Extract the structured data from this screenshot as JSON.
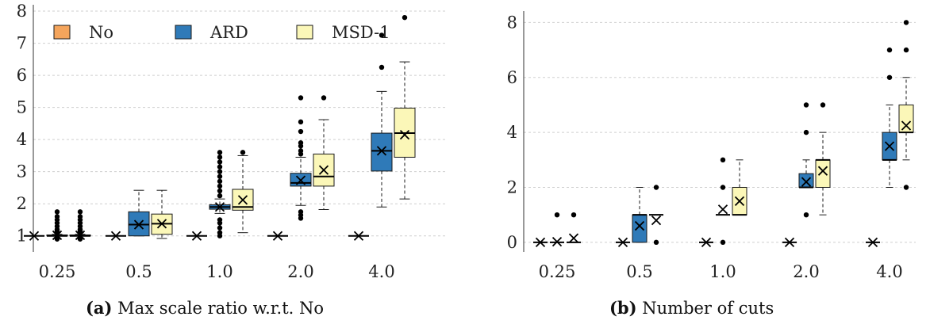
{
  "colors": {
    "No": "#f5a55c",
    "ARD": "#2f7ab8",
    "MSD-1": "#fbf7b8",
    "grid": "#cfcfcf",
    "outline": "#1a1a1a"
  },
  "captions": {
    "a_tag": "(a)",
    "a_text": "Max scale ratio w.r.t. No",
    "b_tag": "(b)",
    "b_text": "Number of cuts"
  },
  "chart_data": [
    {
      "type": "box",
      "categories": [
        "0.25",
        "0.5",
        "1.0",
        "2.0",
        "4.0"
      ],
      "ylim": [
        0.5,
        8.1
      ],
      "yticks": [
        1,
        2,
        3,
        4,
        5,
        6,
        7,
        8
      ],
      "grid": true,
      "legend": {
        "placement": "top-left",
        "entries": [
          {
            "name": "No",
            "color_key": "No"
          },
          {
            "name": "ARD",
            "color_key": "ARD"
          },
          {
            "name": "MSD-1",
            "color_key": "MSD-1"
          }
        ]
      },
      "series": [
        {
          "name": "No",
          "color_key": "No",
          "boxes": [
            {
              "q1": 1,
              "median": 1,
              "q3": 1,
              "whislo": 1,
              "whishi": 1,
              "mean": 1,
              "fliers": []
            },
            {
              "q1": 1,
              "median": 1,
              "q3": 1,
              "whislo": 1,
              "whishi": 1,
              "mean": 1,
              "fliers": []
            },
            {
              "q1": 1,
              "median": 1,
              "q3": 1,
              "whislo": 1,
              "whishi": 1,
              "mean": 1,
              "fliers": []
            },
            {
              "q1": 1,
              "median": 1,
              "q3": 1,
              "whislo": 1,
              "whishi": 1,
              "mean": 1,
              "fliers": []
            },
            {
              "q1": 1,
              "median": 1,
              "q3": 1,
              "whislo": 1,
              "whishi": 1,
              "mean": 1,
              "fliers": []
            }
          ]
        },
        {
          "name": "ARD",
          "color_key": "ARD",
          "boxes": [
            {
              "q1": 1.0,
              "median": 1.0,
              "q3": 1.03,
              "whislo": 1.0,
              "whishi": 1.05,
              "mean": 1.02,
              "fliers": [
                1.1,
                1.15,
                1.2,
                1.3,
                1.4,
                1.5,
                1.6,
                1.75,
                0.9,
                0.95
              ]
            },
            {
              "q1": 1.0,
              "median": 1.35,
              "q3": 1.75,
              "whislo": 1.0,
              "whishi": 2.42,
              "mean": 1.35,
              "fliers": []
            },
            {
              "q1": 1.83,
              "median": 1.9,
              "q3": 1.97,
              "whislo": 1.7,
              "whishi": 2.15,
              "mean": 1.9,
              "fliers": [
                1.0,
                1.1,
                1.25,
                1.4,
                1.5,
                2.25,
                2.4,
                2.55,
                2.7,
                2.85,
                3.0,
                3.15,
                3.3,
                3.45,
                3.6
              ]
            },
            {
              "q1": 2.55,
              "median": 2.65,
              "q3": 2.95,
              "whislo": 1.95,
              "whishi": 3.45,
              "mean": 2.73,
              "fliers": [
                1.55,
                1.65,
                1.75,
                3.55,
                3.65,
                3.8,
                3.9,
                4.25,
                4.55,
                5.3
              ]
            },
            {
              "q1": 3.02,
              "median": 3.65,
              "q3": 4.2,
              "whislo": 1.9,
              "whishi": 5.5,
              "mean": 3.65,
              "fliers": [
                6.25,
                7.25
              ]
            }
          ]
        },
        {
          "name": "MSD-1",
          "color_key": "MSD-1",
          "boxes": [
            {
              "q1": 1.0,
              "median": 1.0,
              "q3": 1.03,
              "whislo": 1.0,
              "whishi": 1.05,
              "mean": 1.02,
              "fliers": [
                1.1,
                1.15,
                1.2,
                1.3,
                1.4,
                1.5,
                1.6,
                1.75,
                0.9,
                0.95
              ]
            },
            {
              "q1": 1.05,
              "median": 1.38,
              "q3": 1.68,
              "whislo": 0.92,
              "whishi": 2.42,
              "mean": 1.38,
              "fliers": []
            },
            {
              "q1": 1.8,
              "median": 1.9,
              "q3": 2.45,
              "whislo": 1.1,
              "whishi": 3.5,
              "mean": 2.12,
              "fliers": [
                3.6
              ]
            },
            {
              "q1": 2.55,
              "median": 2.85,
              "q3": 3.55,
              "whislo": 1.82,
              "whishi": 4.62,
              "mean": 3.05,
              "fliers": [
                5.3
              ]
            },
            {
              "q1": 3.45,
              "median": 4.2,
              "q3": 4.98,
              "whislo": 2.15,
              "whishi": 6.42,
              "mean": 4.15,
              "fliers": [
                7.8
              ]
            }
          ]
        }
      ]
    },
    {
      "type": "box",
      "categories": [
        "0.25",
        "0.5",
        "1.0",
        "2.0",
        "4.0"
      ],
      "ylim": [
        -0.35,
        8.3
      ],
      "yticks": [
        0,
        2,
        4,
        6,
        8
      ],
      "grid": true,
      "series": [
        {
          "name": "No",
          "color_key": "No",
          "boxes": [
            {
              "q1": 0,
              "median": 0,
              "q3": 0,
              "whislo": 0,
              "whishi": 0,
              "mean": 0,
              "fliers": []
            },
            {
              "q1": 0,
              "median": 0,
              "q3": 0,
              "whislo": 0,
              "whishi": 0,
              "mean": 0,
              "fliers": []
            },
            {
              "q1": 0,
              "median": 0,
              "q3": 0,
              "whislo": 0,
              "whishi": 0,
              "mean": 0,
              "fliers": []
            },
            {
              "q1": 0,
              "median": 0,
              "q3": 0,
              "whislo": 0,
              "whishi": 0,
              "mean": 0,
              "fliers": []
            },
            {
              "q1": 0,
              "median": 0,
              "q3": 0,
              "whislo": 0,
              "whishi": 0,
              "mean": 0,
              "fliers": []
            }
          ]
        },
        {
          "name": "ARD",
          "color_key": "ARD",
          "boxes": [
            {
              "q1": 0,
              "median": 0,
              "q3": 0,
              "whislo": 0,
              "whishi": 0,
              "mean": 0.02,
              "fliers": [
                1
              ]
            },
            {
              "q1": 0,
              "median": 1,
              "q3": 1,
              "whislo": 0,
              "whishi": 2,
              "mean": 0.6,
              "fliers": []
            },
            {
              "q1": 1,
              "median": 1,
              "q3": 1,
              "whislo": 1,
              "whishi": 1,
              "mean": 1.2,
              "fliers": [
                0,
                2,
                3
              ]
            },
            {
              "q1": 2,
              "median": 2,
              "q3": 2.5,
              "whislo": 2,
              "whishi": 3,
              "mean": 2.2,
              "fliers": [
                1,
                4,
                5
              ]
            },
            {
              "q1": 3,
              "median": 3,
              "q3": 4,
              "whislo": 2,
              "whishi": 5,
              "mean": 3.5,
              "fliers": [
                6,
                7
              ]
            }
          ]
        },
        {
          "name": "MSD-1",
          "color_key": "MSD-1",
          "boxes": [
            {
              "q1": 0,
              "median": 0,
              "q3": 0,
              "whislo": 0,
              "whishi": 0,
              "mean": 0.15,
              "fliers": [
                1
              ]
            },
            {
              "q1": 1,
              "median": 1,
              "q3": 1,
              "whislo": 1,
              "whishi": 1,
              "mean": 0.8,
              "fliers": [
                0,
                2
              ]
            },
            {
              "q1": 1,
              "median": 1,
              "q3": 2,
              "whislo": 1,
              "whishi": 3,
              "mean": 1.5,
              "fliers": []
            },
            {
              "q1": 2,
              "median": 3,
              "q3": 3,
              "whislo": 1,
              "whishi": 4,
              "mean": 2.6,
              "fliers": [
                5
              ]
            },
            {
              "q1": 4,
              "median": 4,
              "q3": 5,
              "whislo": 3,
              "whishi": 6,
              "mean": 4.25,
              "fliers": [
                2,
                7,
                8
              ]
            }
          ]
        }
      ]
    }
  ]
}
